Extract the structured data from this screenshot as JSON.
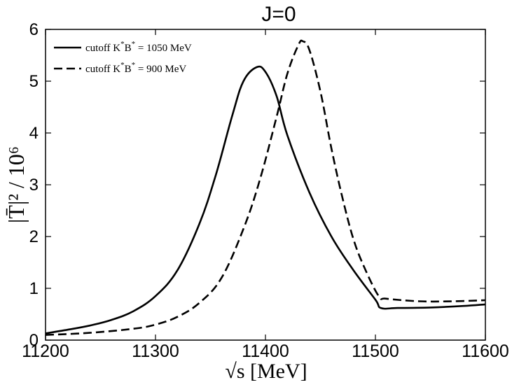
{
  "chart_data": {
    "type": "line",
    "title": "J=0",
    "xlabel": "√s  [MeV]",
    "ylabel": "|T̄|² / 10⁶",
    "xlim": [
      11200,
      11600
    ],
    "ylim": [
      0,
      6
    ],
    "xticks": [
      11200,
      11300,
      11400,
      11500,
      11600
    ],
    "yticks": [
      0,
      1,
      2,
      3,
      4,
      5,
      6
    ],
    "legend_position": "top-left",
    "series": [
      {
        "name": "cutoff K*B* = 1050 MeV",
        "style": "solid",
        "x": [
          11200,
          11220,
          11240,
          11260,
          11280,
          11300,
          11320,
          11340,
          11355,
          11370,
          11380,
          11392,
          11400,
          11410,
          11420,
          11440,
          11460,
          11480,
          11500,
          11505,
          11520,
          11550,
          11580,
          11600
        ],
        "y": [
          0.13,
          0.2,
          0.28,
          0.39,
          0.56,
          0.85,
          1.35,
          2.25,
          3.2,
          4.35,
          5.0,
          5.27,
          5.18,
          4.72,
          3.95,
          2.85,
          2.0,
          1.35,
          0.78,
          0.62,
          0.62,
          0.63,
          0.66,
          0.69
        ]
      },
      {
        "name": "cutoff K*B* = 900 MeV",
        "style": "dashed",
        "x": [
          11200,
          11240,
          11280,
          11300,
          11320,
          11340,
          11360,
          11380,
          11395,
          11410,
          11420,
          11430,
          11434,
          11440,
          11450,
          11460,
          11470,
          11480,
          11490,
          11503,
          11510,
          11540,
          11570,
          11600
        ],
        "y": [
          0.1,
          0.14,
          0.22,
          0.3,
          0.45,
          0.72,
          1.2,
          2.15,
          3.1,
          4.3,
          5.15,
          5.7,
          5.77,
          5.6,
          4.8,
          3.7,
          2.75,
          1.95,
          1.4,
          0.85,
          0.8,
          0.75,
          0.75,
          0.77
        ]
      }
    ],
    "legend": {
      "entries": [
        {
          "prefix": "cutoff K",
          "sup1": "*",
          "mid": "B",
          "sup2": "*",
          "suffix": "= 1050 MeV"
        },
        {
          "prefix": "cutoff K",
          "sup1": "*",
          "mid": "B",
          "sup2": "*",
          "suffix": "= 900 MeV"
        }
      ]
    }
  }
}
